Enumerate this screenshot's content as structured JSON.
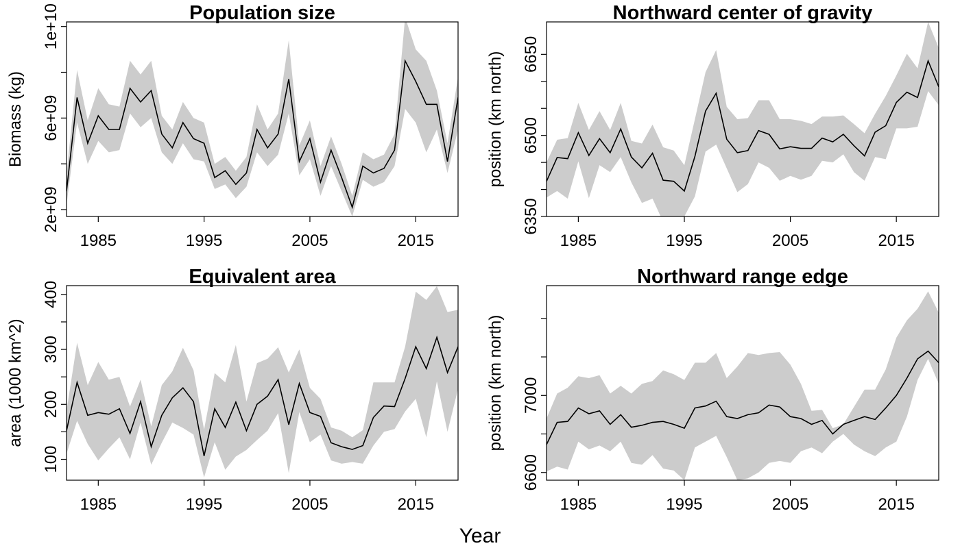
{
  "figure": {
    "xlabel": "Year"
  },
  "chart_data": [
    {
      "type": "area",
      "title": "Population size",
      "xlabel": "",
      "ylabel": "Biomass (kg)",
      "xlim": [
        1982,
        2019
      ],
      "ylim": [
        1700000000,
        10200000000
      ],
      "xticks": [
        1985,
        1995,
        2005,
        2015
      ],
      "xtick_labels": [
        "1985",
        "1995",
        "2005",
        "2015"
      ],
      "yticks": [
        2000000000,
        4000000000,
        6000000000,
        8000000000,
        10000000000
      ],
      "ytick_labels": [
        "2e+09",
        "",
        "6e+09",
        "",
        "1e+10"
      ],
      "grid": false,
      "x": [
        1982,
        1983,
        1984,
        1985,
        1986,
        1987,
        1988,
        1989,
        1990,
        1991,
        1992,
        1993,
        1994,
        1995,
        1996,
        1997,
        1998,
        1999,
        2000,
        2001,
        2002,
        2003,
        2004,
        2005,
        2006,
        2007,
        2008,
        2009,
        2010,
        2011,
        2012,
        2013,
        2014,
        2015,
        2016,
        2017,
        2018,
        2019
      ],
      "series": [
        {
          "values": [
            2800000000.0,
            6900000000.0,
            4900000000.0,
            6100000000.0,
            5500000000.0,
            5500000000.0,
            7300000000.0,
            6700000000.0,
            7200000000.0,
            5300000000.0,
            4700000000.0,
            5800000000.0,
            5100000000.0,
            4900000000.0,
            3400000000.0,
            3700000000.0,
            3100000000.0,
            3600000000.0,
            5500000000.0,
            4700000000.0,
            5300000000.0,
            7700000000.0,
            4100000000.0,
            5100000000.0,
            3200000000.0,
            4600000000.0,
            3400000000.0,
            2100000000.0,
            3900000000.0,
            3600000000.0,
            3800000000.0,
            4600000000.0,
            8500000000.0,
            7600000000.0,
            6600000000.0,
            6600000000.0,
            4100000000.0,
            6900000000.0
          ]
        }
      ],
      "bands": [
        {
          "upper": [
            3500000000.0,
            8100000000.0,
            5900000000.0,
            7300000000.0,
            6600000000.0,
            6500000000.0,
            8500000000.0,
            7900000000.0,
            8500000000.0,
            6100000000.0,
            5500000000.0,
            6700000000.0,
            6000000000.0,
            5800000000.0,
            4000000000.0,
            4300000000.0,
            3700000000.0,
            4300000000.0,
            6600000000.0,
            5500000000.0,
            6200000000.0,
            9400000000.0,
            4800000000.0,
            5900000000.0,
            3900000000.0,
            5200000000.0,
            4000000000.0,
            2600000000.0,
            4500000000.0,
            4200000000.0,
            4400000000.0,
            5300000000.0,
            10400000000.0,
            9000000000.0,
            8500000000.0,
            7200000000.0,
            4900000000.0,
            7800000000.0
          ],
          "lower": [
            2200000000.0,
            5800000000.0,
            4000000000.0,
            5000000000.0,
            4500000000.0,
            4600000000.0,
            6200000000.0,
            5600000000.0,
            6000000000.0,
            4500000000.0,
            4000000000.0,
            4900000000.0,
            4200000000.0,
            4100000000.0,
            2900000000.0,
            3100000000.0,
            2500000000.0,
            3000000000.0,
            4500000000.0,
            3900000000.0,
            4400000000.0,
            6200000000.0,
            3500000000.0,
            4200000000.0,
            2600000000.0,
            3900000000.0,
            2800000000.0,
            1700000000.0,
            3300000000.0,
            3000000000.0,
            3200000000.0,
            3900000000.0,
            6400000000.0,
            5800000000.0,
            4500000000.0,
            5500000000.0,
            3600000000.0,
            5500000000.0
          ]
        }
      ]
    },
    {
      "type": "area",
      "title": "Northward center of gravity",
      "xlabel": "",
      "ylabel": "position (km north)",
      "xlim": [
        1982,
        2019
      ],
      "ylim": [
        6350,
        6710
      ],
      "xticks": [
        1985,
        1995,
        2005,
        2015
      ],
      "xtick_labels": [
        "1985",
        "1995",
        "2005",
        "2015"
      ],
      "yticks": [
        6350,
        6400,
        6450,
        6500,
        6550,
        6600,
        6650
      ],
      "ytick_labels": [
        "6350",
        "",
        "",
        "6500",
        "",
        "",
        "6650"
      ],
      "grid": false,
      "x": [
        1982,
        1983,
        1984,
        1985,
        1986,
        1987,
        1988,
        1989,
        1990,
        1991,
        1992,
        1993,
        1994,
        1995,
        1996,
        1997,
        1998,
        1999,
        2000,
        2001,
        2002,
        2003,
        2004,
        2005,
        2006,
        2007,
        2008,
        2009,
        2010,
        2011,
        2012,
        2013,
        2014,
        2015,
        2016,
        2017,
        2018,
        2019
      ],
      "series": [
        {
          "values": [
            6415,
            6459,
            6457,
            6505,
            6463,
            6494,
            6468,
            6512,
            6460,
            6440,
            6467,
            6417,
            6415,
            6397,
            6461,
            6545,
            6578,
            6493,
            6468,
            6472,
            6509,
            6502,
            6475,
            6479,
            6476,
            6476,
            6495,
            6488,
            6502,
            6481,
            6462,
            6506,
            6518,
            6561,
            6580,
            6570,
            6638,
            6590
          ]
        }
      ],
      "bands": [
        {
          "upper": [
            6450,
            6492,
            6495,
            6560,
            6510,
            6545,
            6510,
            6560,
            6490,
            6485,
            6520,
            6478,
            6472,
            6445,
            6530,
            6617,
            6658,
            6553,
            6530,
            6532,
            6565,
            6565,
            6530,
            6530,
            6527,
            6521,
            6535,
            6535,
            6537,
            6521,
            6504,
            6540,
            6573,
            6611,
            6651,
            6624,
            6710,
            6662
          ],
          "lower": [
            6385,
            6397,
            6383,
            6452,
            6384,
            6445,
            6432,
            6460,
            6413,
            6375,
            6383,
            6340,
            6345,
            6350,
            6387,
            6470,
            6483,
            6439,
            6395,
            6410,
            6450,
            6440,
            6416,
            6425,
            6418,
            6425,
            6453,
            6450,
            6465,
            6432,
            6416,
            6460,
            6456,
            6513,
            6513,
            6516,
            6582,
            6556
          ]
        }
      ]
    },
    {
      "type": "area",
      "title": "Equivalent area",
      "xlabel": "",
      "ylabel": "area (1000 km^2)",
      "xlim": [
        1982,
        2019
      ],
      "ylim": [
        62,
        416
      ],
      "xticks": [
        1985,
        1995,
        2005,
        2015
      ],
      "xtick_labels": [
        "1985",
        "1995",
        "2005",
        "2015"
      ],
      "yticks": [
        100,
        150,
        200,
        250,
        300,
        350,
        400
      ],
      "ytick_labels": [
        "100",
        "",
        "200",
        "",
        "300",
        "",
        "400"
      ],
      "grid": false,
      "x": [
        1982,
        1983,
        1984,
        1985,
        1986,
        1987,
        1988,
        1989,
        1990,
        1991,
        1992,
        1993,
        1994,
        1995,
        1996,
        1997,
        1998,
        1999,
        2000,
        2001,
        2002,
        2003,
        2004,
        2005,
        2006,
        2007,
        2008,
        2009,
        2010,
        2011,
        2012,
        2013,
        2014,
        2015,
        2016,
        2017,
        2018,
        2019
      ],
      "series": [
        {
          "values": [
            152,
            240,
            180,
            185,
            182,
            192,
            147,
            205,
            123,
            180,
            212,
            230,
            205,
            106,
            192,
            158,
            204,
            152,
            200,
            215,
            245,
            163,
            238,
            185,
            178,
            130,
            123,
            118,
            125,
            176,
            197,
            196,
            247,
            305,
            265,
            322,
            258,
            305
          ]
        }
      ],
      "bands": [
        {
          "upper": [
            188,
            312,
            235,
            277,
            245,
            250,
            196,
            245,
            160,
            235,
            260,
            303,
            262,
            154,
            257,
            240,
            308,
            205,
            275,
            283,
            304,
            258,
            300,
            230,
            210,
            158,
            152,
            140,
            153,
            240,
            240,
            240,
            305,
            405,
            390,
            415,
            368,
            372
          ],
          "lower": [
            110,
            170,
            128,
            98,
            120,
            140,
            100,
            167,
            90,
            130,
            167,
            157,
            145,
            67,
            131,
            81,
            105,
            117,
            135,
            152,
            184,
            75,
            186,
            131,
            145,
            98,
            92,
            95,
            92,
            125,
            150,
            155,
            187,
            210,
            140,
            242,
            150,
            228
          ]
        }
      ]
    },
    {
      "type": "area",
      "title": "Northward range edge",
      "xlabel": "",
      "ylabel": "position (km north)",
      "xlim": [
        1982,
        2019
      ],
      "ylim": [
        6560,
        7570
      ],
      "xticks": [
        1985,
        1995,
        2005,
        2015
      ],
      "xtick_labels": [
        "1985",
        "1995",
        "2005",
        "2015"
      ],
      "yticks": [
        6600,
        6800,
        7000,
        7200,
        7400
      ],
      "ytick_labels": [
        "6600",
        "",
        "7000",
        "",
        ""
      ],
      "grid": false,
      "x": [
        1982,
        1983,
        1984,
        1985,
        1986,
        1987,
        1988,
        1989,
        1990,
        1991,
        1992,
        1993,
        1994,
        1995,
        1996,
        1997,
        1998,
        1999,
        2000,
        2001,
        2002,
        2003,
        2004,
        2005,
        2006,
        2007,
        2008,
        2009,
        2010,
        2011,
        2012,
        2013,
        2014,
        2015,
        2016,
        2017,
        2018,
        2019
      ],
      "series": [
        {
          "values": [
            6745,
            6860,
            6865,
            6935,
            6905,
            6920,
            6850,
            6900,
            6835,
            6845,
            6860,
            6865,
            6850,
            6830,
            6935,
            6945,
            6970,
            6890,
            6880,
            6900,
            6910,
            6950,
            6940,
            6890,
            6880,
            6850,
            6870,
            6800,
            6850,
            6870,
            6890,
            6875,
            6935,
            7000,
            7090,
            7190,
            7230,
            7170
          ]
        }
      ],
      "bands": [
        {
          "upper": [
            6880,
            7010,
            7040,
            7100,
            7090,
            7105,
            7010,
            7050,
            7010,
            7060,
            7075,
            7130,
            7110,
            7080,
            7170,
            7170,
            7220,
            7090,
            7150,
            7220,
            7210,
            7220,
            7225,
            7160,
            7060,
            6920,
            6925,
            6830,
            6850,
            6940,
            7030,
            7030,
            7135,
            7300,
            7390,
            7450,
            7540,
            7430
          ],
          "lower": [
            6605,
            6630,
            6615,
            6760,
            6720,
            6740,
            6710,
            6760,
            6650,
            6640,
            6690,
            6620,
            6610,
            6560,
            6730,
            6760,
            6790,
            6680,
            6560,
            6570,
            6600,
            6650,
            6660,
            6650,
            6710,
            6730,
            6700,
            6760,
            6800,
            6745,
            6710,
            6685,
            6730,
            6760,
            6890,
            7080,
            7190,
            7060
          ]
        }
      ]
    }
  ]
}
